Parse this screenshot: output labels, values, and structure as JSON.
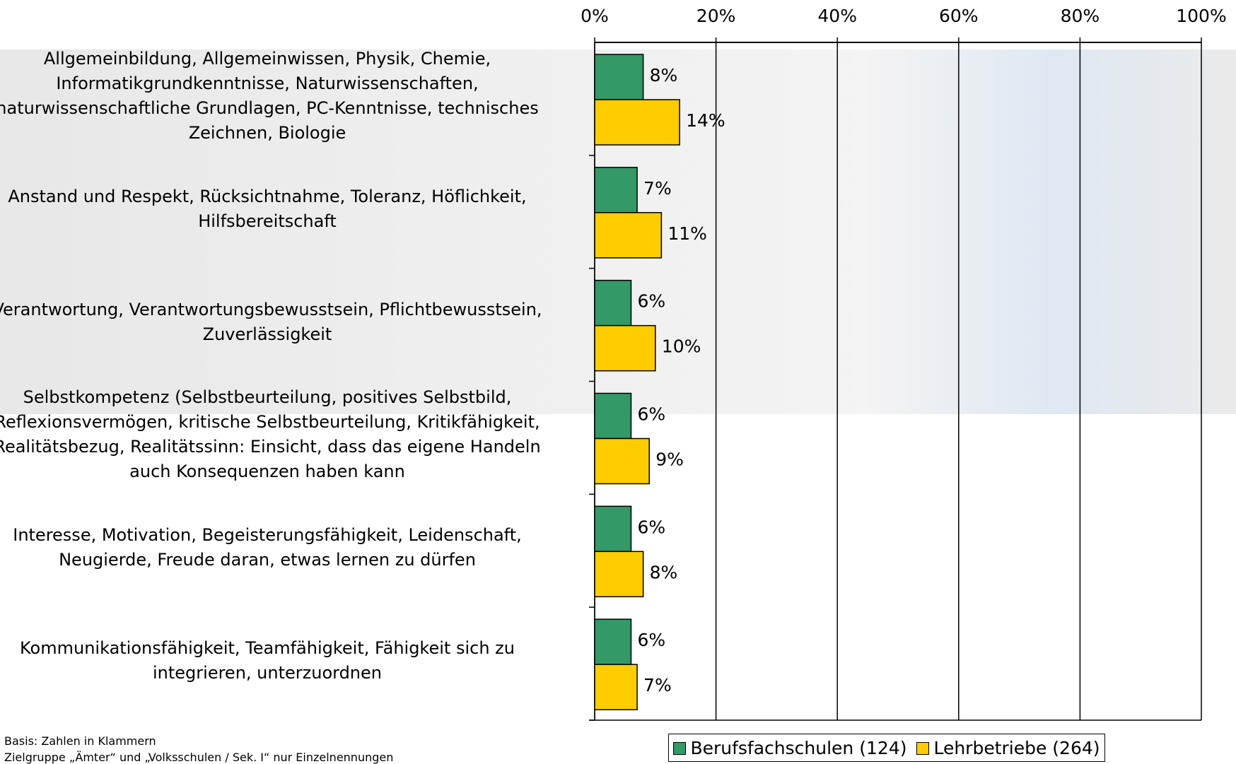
{
  "chart_data": {
    "type": "bar",
    "orientation": "horizontal",
    "categories": [
      "Allgemeinbildung, Allgemeinwissen, Physik, Chemie,\nInformatikgrundkenntnisse, Naturwissenschaften,\nnaturwissenschaftliche Grundlagen, PC-Kenntnisse, technisches\nZeichnen, Biologie",
      "Anstand  und Respekt, Rücksichtnahme, Toleranz, Höflichkeit,\nHilfsbereitschaft",
      "Verantwortung, Verantwortungsbewusstsein, Pflichtbewusstsein,\nZuverlässigkeit",
      "Selbstkompetenz (Selbstbeurteilung, positives Selbstbild,\nReflexionsvermögen, kritische Selbstbeurteilung, Kritikfähigkeit,\nRealitätsbezug, Realitätssinn: Einsicht, dass das eigene Handeln\nauch Konsequenzen haben kann",
      "Interesse, Motivation, Begeisterungsfähigkeit, Leidenschaft,\nNeugierde, Freude daran, etwas lernen zu dürfen",
      "Kommunikationsfähigkeit, Teamfähigkeit, Fähigkeit sich zu\nintegrieren, unterzuordnen"
    ],
    "series": [
      {
        "name": "Berufsfachschulen (124)",
        "color": "#339966",
        "values": [
          8,
          7,
          6,
          6,
          6,
          6
        ],
        "value_labels": [
          "8%",
          "7%",
          "6%",
          "6%",
          "6%",
          "6%"
        ]
      },
      {
        "name": "Lehrbetriebe (264)",
        "color": "#ffcc00",
        "values": [
          14,
          11,
          10,
          9,
          8,
          7
        ],
        "value_labels": [
          "14%",
          "11%",
          "10%",
          "9%",
          "8%",
          "7%"
        ]
      }
    ],
    "xlim": [
      0,
      100
    ],
    "xticks": [
      {
        "value": 0,
        "label": "0%"
      },
      {
        "value": 20,
        "label": "20%"
      },
      {
        "value": 40,
        "label": "40%"
      },
      {
        "value": 60,
        "label": "60%"
      },
      {
        "value": 80,
        "label": "80%"
      },
      {
        "value": 100,
        "label": "100%"
      }
    ],
    "grid": true,
    "notes": [
      "Basis: Zahlen in Klammern",
      "Zielgruppe „Ämter“ und „Volksschulen / Sek. I“ nur Einzelnennungen"
    ]
  }
}
